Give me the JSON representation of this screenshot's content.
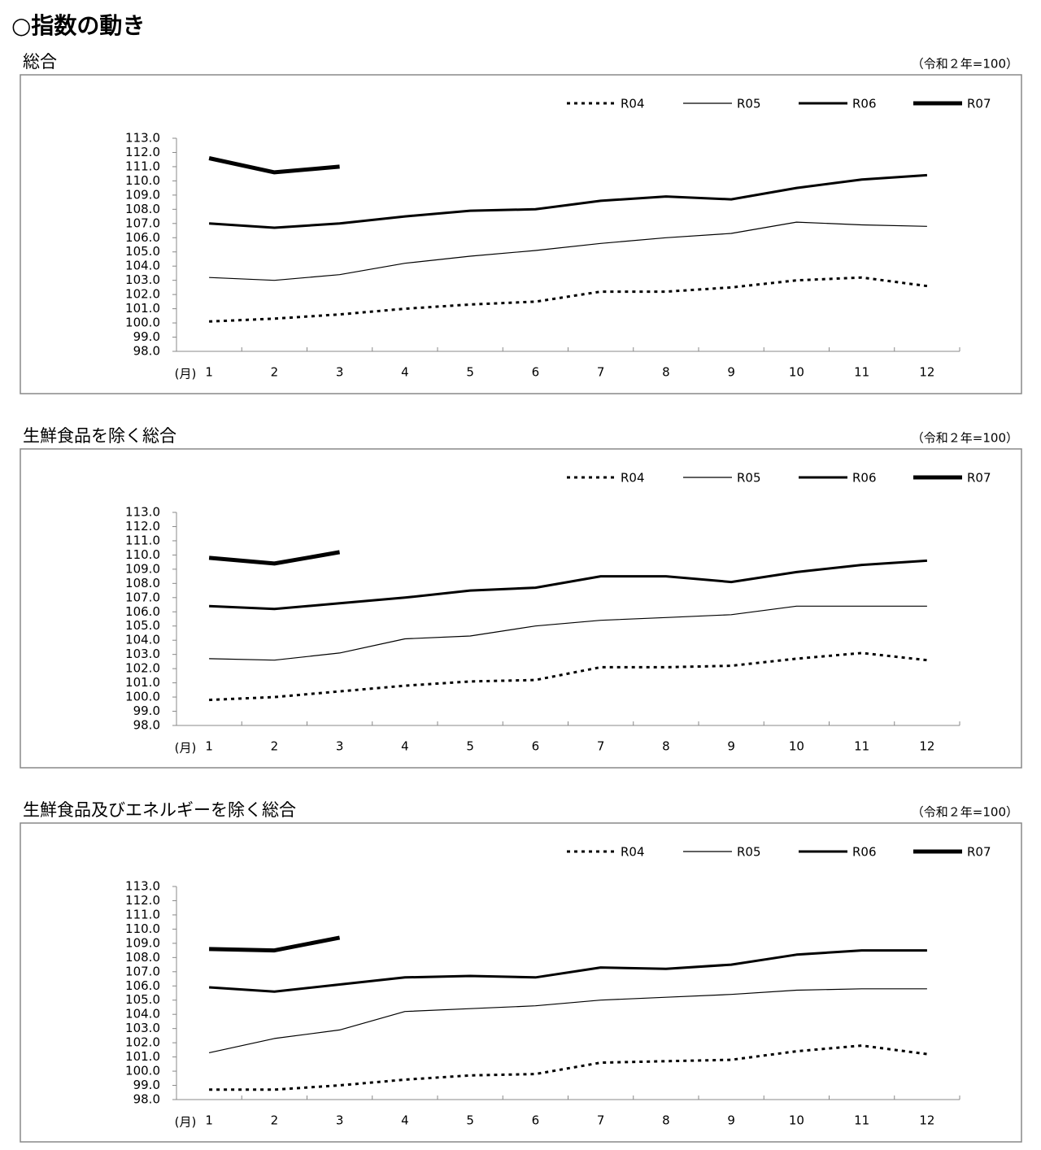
{
  "title": "○指数の動き",
  "chart_data": [
    {
      "type": "line",
      "title": "総合",
      "note": "（令和２年=100）",
      "xlabel": "(月)",
      "categories": [
        "1",
        "2",
        "3",
        "4",
        "5",
        "6",
        "7",
        "8",
        "9",
        "10",
        "11",
        "12"
      ],
      "ylim": [
        98,
        113
      ],
      "yticks": [
        {
          "value": 98,
          "label": "98.0"
        },
        {
          "value": 99,
          "label": "99.0"
        },
        {
          "value": 100,
          "label": "100.0"
        },
        {
          "value": 101,
          "label": "101.0"
        },
        {
          "value": 102,
          "label": "102.0"
        },
        {
          "value": 103,
          "label": "103.0"
        },
        {
          "value": 104,
          "label": "104.0"
        },
        {
          "value": 105,
          "label": "105.0"
        },
        {
          "value": 106,
          "label": "106.0"
        },
        {
          "value": 107,
          "label": "107.0"
        },
        {
          "value": 108,
          "label": "108.0"
        },
        {
          "value": 109,
          "label": "109.0"
        },
        {
          "value": 110,
          "label": "110.0"
        },
        {
          "value": 111,
          "label": "111.0"
        },
        {
          "value": 112,
          "label": "112.0"
        },
        {
          "value": 113,
          "label": "113.0"
        }
      ],
      "legend": "top-right",
      "series": [
        {
          "name": "R04",
          "color": "#000000",
          "width": 3,
          "dashed": true,
          "values": [
            100.1,
            100.3,
            100.6,
            101.0,
            101.3,
            101.5,
            102.2,
            102.2,
            102.5,
            103.0,
            103.2,
            102.6
          ]
        },
        {
          "name": "R05",
          "color": "#000000",
          "width": 1.2,
          "dashed": false,
          "values": [
            103.2,
            103.0,
            103.4,
            104.2,
            104.7,
            105.1,
            105.6,
            106.0,
            106.3,
            107.1,
            106.9,
            106.8
          ]
        },
        {
          "name": "R06",
          "color": "#000000",
          "width": 3,
          "dashed": false,
          "values": [
            107.0,
            106.7,
            107.0,
            107.5,
            107.9,
            108.0,
            108.6,
            108.9,
            108.7,
            109.5,
            110.1,
            110.4
          ]
        },
        {
          "name": "R07",
          "color": "#000000",
          "width": 5,
          "dashed": false,
          "values": [
            111.6,
            110.6,
            111.0,
            null,
            null,
            null,
            null,
            null,
            null,
            null,
            null,
            null
          ]
        }
      ]
    },
    {
      "type": "line",
      "title": "生鮮食品を除く総合",
      "note": "（令和２年=100）",
      "xlabel": "(月)",
      "categories": [
        "1",
        "2",
        "3",
        "4",
        "5",
        "6",
        "7",
        "8",
        "9",
        "10",
        "11",
        "12"
      ],
      "ylim": [
        98,
        113
      ],
      "yticks": [
        {
          "value": 98,
          "label": "98.0"
        },
        {
          "value": 99,
          "label": "99.0"
        },
        {
          "value": 100,
          "label": "100.0"
        },
        {
          "value": 101,
          "label": "101.0"
        },
        {
          "value": 102,
          "label": "102.0"
        },
        {
          "value": 103,
          "label": "103.0"
        },
        {
          "value": 104,
          "label": "104.0"
        },
        {
          "value": 105,
          "label": "105.0"
        },
        {
          "value": 106,
          "label": "106.0"
        },
        {
          "value": 107,
          "label": "107.0"
        },
        {
          "value": 108,
          "label": "108.0"
        },
        {
          "value": 109,
          "label": "109.0"
        },
        {
          "value": 110,
          "label": "110.0"
        },
        {
          "value": 111,
          "label": "111.0"
        },
        {
          "value": 112,
          "label": "112.0"
        },
        {
          "value": 113,
          "label": "113.0"
        }
      ],
      "legend": "top-right",
      "series": [
        {
          "name": "R04",
          "color": "#000000",
          "width": 3,
          "dashed": true,
          "values": [
            99.8,
            100.0,
            100.4,
            100.8,
            101.1,
            101.2,
            102.1,
            102.1,
            102.2,
            102.7,
            103.1,
            102.6
          ]
        },
        {
          "name": "R05",
          "color": "#000000",
          "width": 1.2,
          "dashed": false,
          "values": [
            102.7,
            102.6,
            103.1,
            104.1,
            104.3,
            105.0,
            105.4,
            105.6,
            105.8,
            106.4,
            106.4,
            106.4
          ]
        },
        {
          "name": "R06",
          "color": "#000000",
          "width": 3,
          "dashed": false,
          "values": [
            106.4,
            106.2,
            106.6,
            107.0,
            107.5,
            107.7,
            108.5,
            108.5,
            108.1,
            108.8,
            109.3,
            109.6
          ]
        },
        {
          "name": "R07",
          "color": "#000000",
          "width": 5,
          "dashed": false,
          "values": [
            109.8,
            109.4,
            110.2,
            null,
            null,
            null,
            null,
            null,
            null,
            null,
            null,
            null
          ]
        }
      ]
    },
    {
      "type": "line",
      "title": "生鮮食品及びエネルギーを除く総合",
      "note": "（令和２年=100）",
      "xlabel": "(月)",
      "categories": [
        "1",
        "2",
        "3",
        "4",
        "5",
        "6",
        "7",
        "8",
        "9",
        "10",
        "11",
        "12"
      ],
      "ylim": [
        98,
        113
      ],
      "yticks": [
        {
          "value": 98,
          "label": "98.0"
        },
        {
          "value": 99,
          "label": "99.0"
        },
        {
          "value": 100,
          "label": "100.0"
        },
        {
          "value": 101,
          "label": "101.0"
        },
        {
          "value": 102,
          "label": "102.0"
        },
        {
          "value": 103,
          "label": "103.0"
        },
        {
          "value": 104,
          "label": "104.0"
        },
        {
          "value": 105,
          "label": "105.0"
        },
        {
          "value": 106,
          "label": "106.0"
        },
        {
          "value": 107,
          "label": "107.0"
        },
        {
          "value": 108,
          "label": "108.0"
        },
        {
          "value": 109,
          "label": "109.0"
        },
        {
          "value": 110,
          "label": "110.0"
        },
        {
          "value": 111,
          "label": "111.0"
        },
        {
          "value": 112,
          "label": "112.0"
        },
        {
          "value": 113,
          "label": "113.0"
        }
      ],
      "legend": "top-right",
      "series": [
        {
          "name": "R04",
          "color": "#000000",
          "width": 3,
          "dashed": true,
          "values": [
            98.7,
            98.7,
            99.0,
            99.4,
            99.7,
            99.8,
            100.6,
            100.7,
            100.8,
            101.4,
            101.8,
            101.2
          ]
        },
        {
          "name": "R05",
          "color": "#000000",
          "width": 1.2,
          "dashed": false,
          "values": [
            101.3,
            102.3,
            102.9,
            104.2,
            104.4,
            104.6,
            105.0,
            105.2,
            105.4,
            105.7,
            105.8,
            105.8
          ]
        },
        {
          "name": "R06",
          "color": "#000000",
          "width": 3,
          "dashed": false,
          "values": [
            105.9,
            105.6,
            106.1,
            106.6,
            106.7,
            106.6,
            107.3,
            107.2,
            107.5,
            108.2,
            108.5,
            108.5
          ]
        },
        {
          "name": "R07",
          "color": "#000000",
          "width": 5,
          "dashed": false,
          "values": [
            108.6,
            108.5,
            109.4,
            null,
            null,
            null,
            null,
            null,
            null,
            null,
            null,
            null
          ]
        }
      ]
    }
  ]
}
